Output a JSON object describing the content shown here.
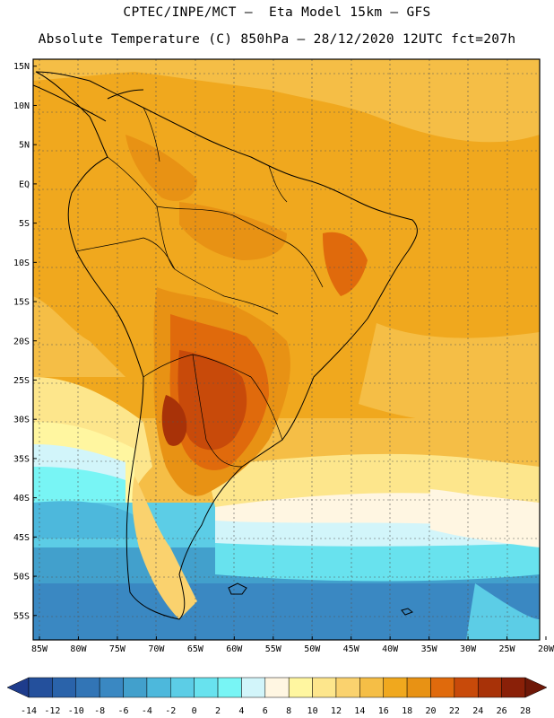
{
  "header": {
    "line1": "CPTEC/INPE/MCT –  Eta Model 15km – GFS",
    "line2": "Absolute Temperature (C) 850hPa – 28/12/2020 12UTC fct=207h"
  },
  "map": {
    "lon_range": [
      -85,
      -20
    ],
    "lat_range": [
      -58,
      16
    ],
    "lat_labels": [
      "15N",
      "10N",
      "5N",
      "EQ",
      "5S",
      "10S",
      "15S",
      "20S",
      "25S",
      "30S",
      "35S",
      "40S",
      "45S",
      "50S",
      "55S"
    ],
    "lat_values": [
      15,
      10,
      5,
      0,
      -5,
      -10,
      -15,
      -20,
      -25,
      -30,
      -35,
      -40,
      -45,
      -50,
      -55
    ],
    "lon_labels": [
      "85W",
      "80W",
      "75W",
      "70W",
      "65W",
      "60W",
      "55W",
      "50W",
      "45W",
      "40W",
      "35W",
      "30W",
      "25W",
      "20W"
    ],
    "lon_values": [
      -85,
      -80,
      -75,
      -70,
      -65,
      -60,
      -55,
      -50,
      -45,
      -40,
      -35,
      -30,
      -25,
      -20
    ]
  },
  "colorbar": {
    "labels": [
      "-14",
      "-12",
      "-10",
      "-8",
      "-6",
      "-4",
      "-2",
      "0",
      "2",
      "4",
      "6",
      "8",
      "10",
      "12",
      "14",
      "16",
      "18",
      "20",
      "22",
      "24",
      "26",
      "28"
    ],
    "colors": [
      "#1e3c8c",
      "#24509c",
      "#2a63aa",
      "#3275b6",
      "#3a88c2",
      "#42a0cc",
      "#4db8dc",
      "#5ccde6",
      "#68e2ee",
      "#78f5f5",
      "#d2f5fa",
      "#fff6e2",
      "#fff6a0",
      "#fde68c",
      "#fad26e",
      "#f5be46",
      "#f0a81e",
      "#e89214",
      "#e06a0c",
      "#c84a0a",
      "#a83208",
      "#8a2008",
      "#6e1808"
    ]
  }
}
